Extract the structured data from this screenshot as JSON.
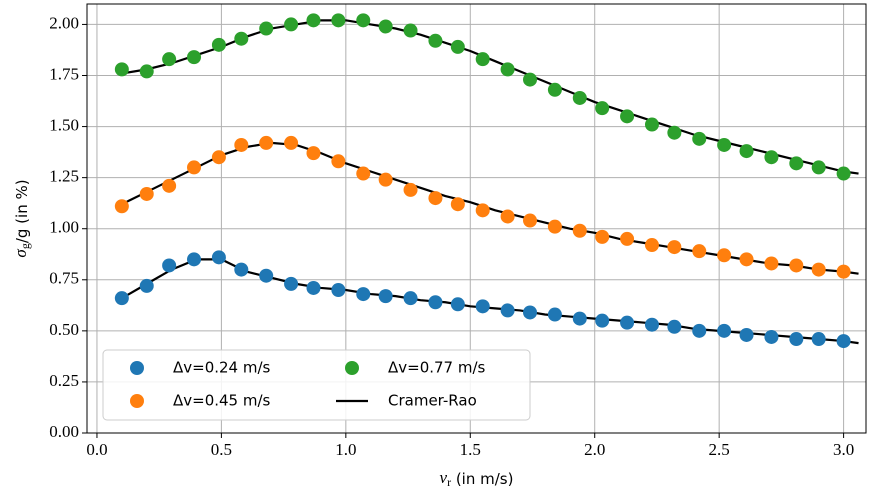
{
  "chart_data": {
    "type": "scatter",
    "xlabel": {
      "symbol": "v",
      "sub": "r",
      "rest": " (in m/s)"
    },
    "ylabel": {
      "symbol": "σ",
      "sub": "g",
      "rest": "/g (in %)"
    },
    "xlim": [
      -0.04,
      3.09
    ],
    "ylim": [
      0,
      2.1
    ],
    "xticks": [
      {
        "value": 0,
        "label": "0.0"
      },
      0.5,
      {
        "value": 1,
        "label": "1.0"
      },
      1.5,
      {
        "value": 2,
        "label": "2.0"
      },
      2.5,
      {
        "value": 3,
        "label": "3.0"
      }
    ],
    "yticks": [
      {
        "value": 0,
        "label": "0.00"
      },
      0.25,
      {
        "value": 0.5,
        "label": "0.50"
      },
      0.75,
      {
        "value": 1,
        "label": "1.00"
      },
      1.25,
      {
        "value": 1.5,
        "label": "1.50"
      },
      1.75,
      {
        "value": 2,
        "label": "2.00"
      }
    ],
    "grid": true,
    "legend": "lower left",
    "x": [
      0.1,
      0.2,
      0.29,
      0.39,
      0.49,
      0.58,
      0.68,
      0.78,
      0.87,
      0.97,
      1.07,
      1.16,
      1.26,
      1.36,
      1.45,
      1.55,
      1.65,
      1.74,
      1.84,
      1.94,
      2.03,
      2.13,
      2.23,
      2.32,
      2.42,
      2.52,
      2.61,
      2.71,
      2.81,
      2.9,
      3.0
    ],
    "series": [
      {
        "name": "Δv=0.24 m/s",
        "color": "#1f77b4",
        "values": [
          0.66,
          0.72,
          0.82,
          0.85,
          0.86,
          0.8,
          0.77,
          0.73,
          0.71,
          0.7,
          0.68,
          0.67,
          0.66,
          0.64,
          0.63,
          0.62,
          0.6,
          0.59,
          0.58,
          0.56,
          0.55,
          0.54,
          0.53,
          0.52,
          0.5,
          0.5,
          0.48,
          0.47,
          0.46,
          0.46,
          0.45
        ]
      },
      {
        "name": "Δv=0.45 m/s",
        "color": "#ff7f0e",
        "values": [
          1.11,
          1.17,
          1.21,
          1.3,
          1.35,
          1.41,
          1.42,
          1.42,
          1.37,
          1.33,
          1.27,
          1.24,
          1.19,
          1.15,
          1.12,
          1.09,
          1.06,
          1.04,
          1.01,
          0.99,
          0.96,
          0.95,
          0.92,
          0.91,
          0.89,
          0.87,
          0.85,
          0.83,
          0.82,
          0.8,
          0.79
        ]
      },
      {
        "name": "Δv=0.77 m/s",
        "color": "#2ca02c",
        "values": [
          1.78,
          1.77,
          1.83,
          1.84,
          1.9,
          1.93,
          1.98,
          2.0,
          2.02,
          2.02,
          2.02,
          1.99,
          1.97,
          1.92,
          1.89,
          1.83,
          1.78,
          1.73,
          1.68,
          1.64,
          1.59,
          1.55,
          1.51,
          1.47,
          1.44,
          1.41,
          1.38,
          1.35,
          1.32,
          1.3,
          1.27
        ]
      }
    ],
    "lines": {
      "name": "Cramer-Rao",
      "color": "#000000",
      "x": [
        0.1,
        0.2,
        0.3,
        0.4,
        0.5,
        0.6,
        0.7,
        0.8,
        0.9,
        1.0,
        1.1,
        1.2,
        1.3,
        1.4,
        1.5,
        1.6,
        1.7,
        1.8,
        1.9,
        2.0,
        2.1,
        2.2,
        2.3,
        2.4,
        2.5,
        2.6,
        2.7,
        2.8,
        2.9,
        3.0,
        3.06
      ],
      "curves": [
        [
          0.66,
          0.73,
          0.8,
          0.85,
          0.85,
          0.79,
          0.76,
          0.73,
          0.71,
          0.7,
          0.68,
          0.67,
          0.65,
          0.64,
          0.62,
          0.61,
          0.6,
          0.58,
          0.57,
          0.56,
          0.55,
          0.54,
          0.53,
          0.51,
          0.5,
          0.49,
          0.48,
          0.47,
          0.46,
          0.45,
          0.44
        ],
        [
          1.12,
          1.18,
          1.24,
          1.3,
          1.36,
          1.4,
          1.42,
          1.41,
          1.37,
          1.32,
          1.28,
          1.24,
          1.2,
          1.16,
          1.13,
          1.09,
          1.06,
          1.03,
          1.0,
          0.98,
          0.95,
          0.93,
          0.91,
          0.89,
          0.87,
          0.85,
          0.83,
          0.82,
          0.8,
          0.79,
          0.78
        ],
        [
          1.76,
          1.78,
          1.81,
          1.85,
          1.89,
          1.94,
          1.98,
          2.0,
          2.02,
          2.02,
          2.0,
          1.98,
          1.95,
          1.91,
          1.87,
          1.82,
          1.77,
          1.72,
          1.67,
          1.62,
          1.58,
          1.54,
          1.5,
          1.46,
          1.43,
          1.4,
          1.37,
          1.34,
          1.31,
          1.28,
          1.27
        ]
      ]
    }
  }
}
